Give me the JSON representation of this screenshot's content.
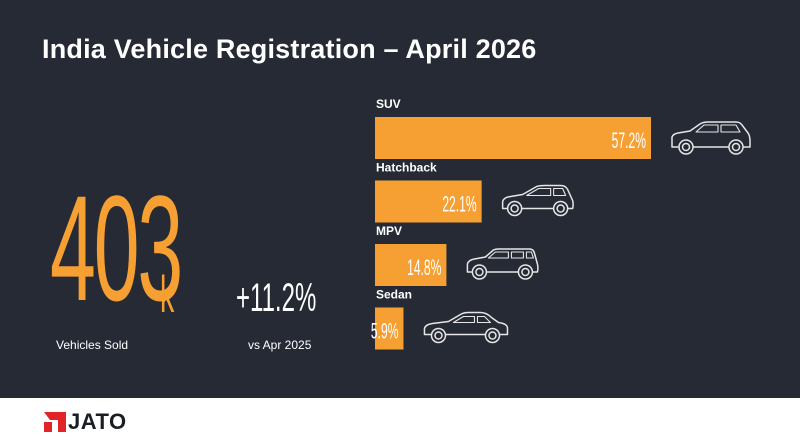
{
  "title": "India Vehicle Registration – April 2026",
  "kpi": {
    "value": "403",
    "unit": "k",
    "label": "Vehicles Sold",
    "growth": "+11.2%",
    "growth_label": "vs Apr 2025"
  },
  "colors": {
    "bar": "#f6a033",
    "background": "#262a35",
    "text": "#ffffff",
    "car_outline": "#e6e6e6"
  },
  "chart_data": {
    "type": "bar",
    "orientation": "horizontal",
    "categories": [
      "SUV",
      "Hatchback",
      "MPV",
      "Sedan"
    ],
    "values": [
      57.2,
      22.1,
      14.8,
      5.9
    ],
    "value_labels": [
      "57.2%",
      "22.1%",
      "14.8%",
      "5.9%"
    ],
    "icons": [
      "suv-car-icon",
      "hatchback-car-icon",
      "mpv-car-icon",
      "sedan-car-icon"
    ],
    "xlim": [
      0,
      57.2
    ],
    "grid": false
  },
  "footer": {
    "logo_text": "JATO",
    "logo_icon": "jato-logo-mark-icon"
  }
}
